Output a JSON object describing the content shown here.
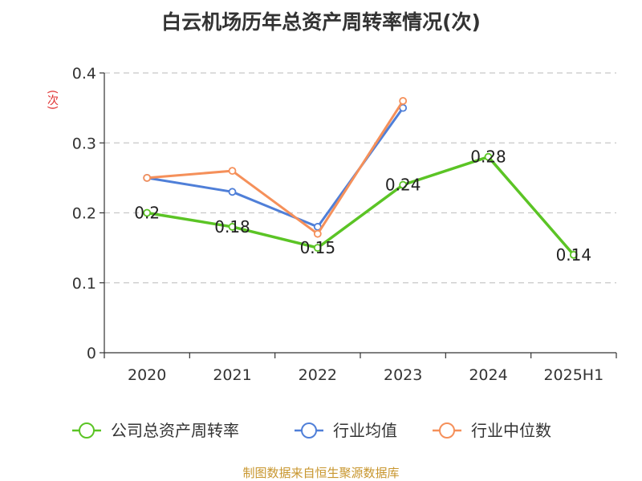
{
  "chart_data": {
    "type": "line",
    "title": "白云机场历年总资产周转率情况(次)",
    "ylabel": "(次)",
    "xlabel": "",
    "categories": [
      "2020",
      "2021",
      "2022",
      "2023",
      "2024",
      "2025H1"
    ],
    "ylim": [
      0,
      0.4
    ],
    "yticks": [
      0,
      0.1,
      0.2,
      0.3,
      0.4
    ],
    "ytick_labels": [
      "0",
      "0.1",
      "0.2",
      "0.3",
      "0.4"
    ],
    "grid": true,
    "legend": "bottom",
    "series": [
      {
        "name": "公司总资产周转率",
        "color": "#5bc425",
        "values": [
          0.2,
          0.18,
          0.15,
          0.24,
          0.28,
          0.14
        ],
        "labels": [
          "0.2",
          "0.18",
          "0.15",
          "0.24",
          "0.28",
          "0.14"
        ]
      },
      {
        "name": "行业均值",
        "color": "#4f7fd8",
        "values": [
          0.25,
          0.23,
          0.18,
          0.35,
          null,
          null
        ]
      },
      {
        "name": "行业中位数",
        "color": "#f5905a",
        "values": [
          0.25,
          0.26,
          0.17,
          0.36,
          null,
          null
        ]
      }
    ]
  },
  "source": "制图数据来自恒生聚源数据库"
}
